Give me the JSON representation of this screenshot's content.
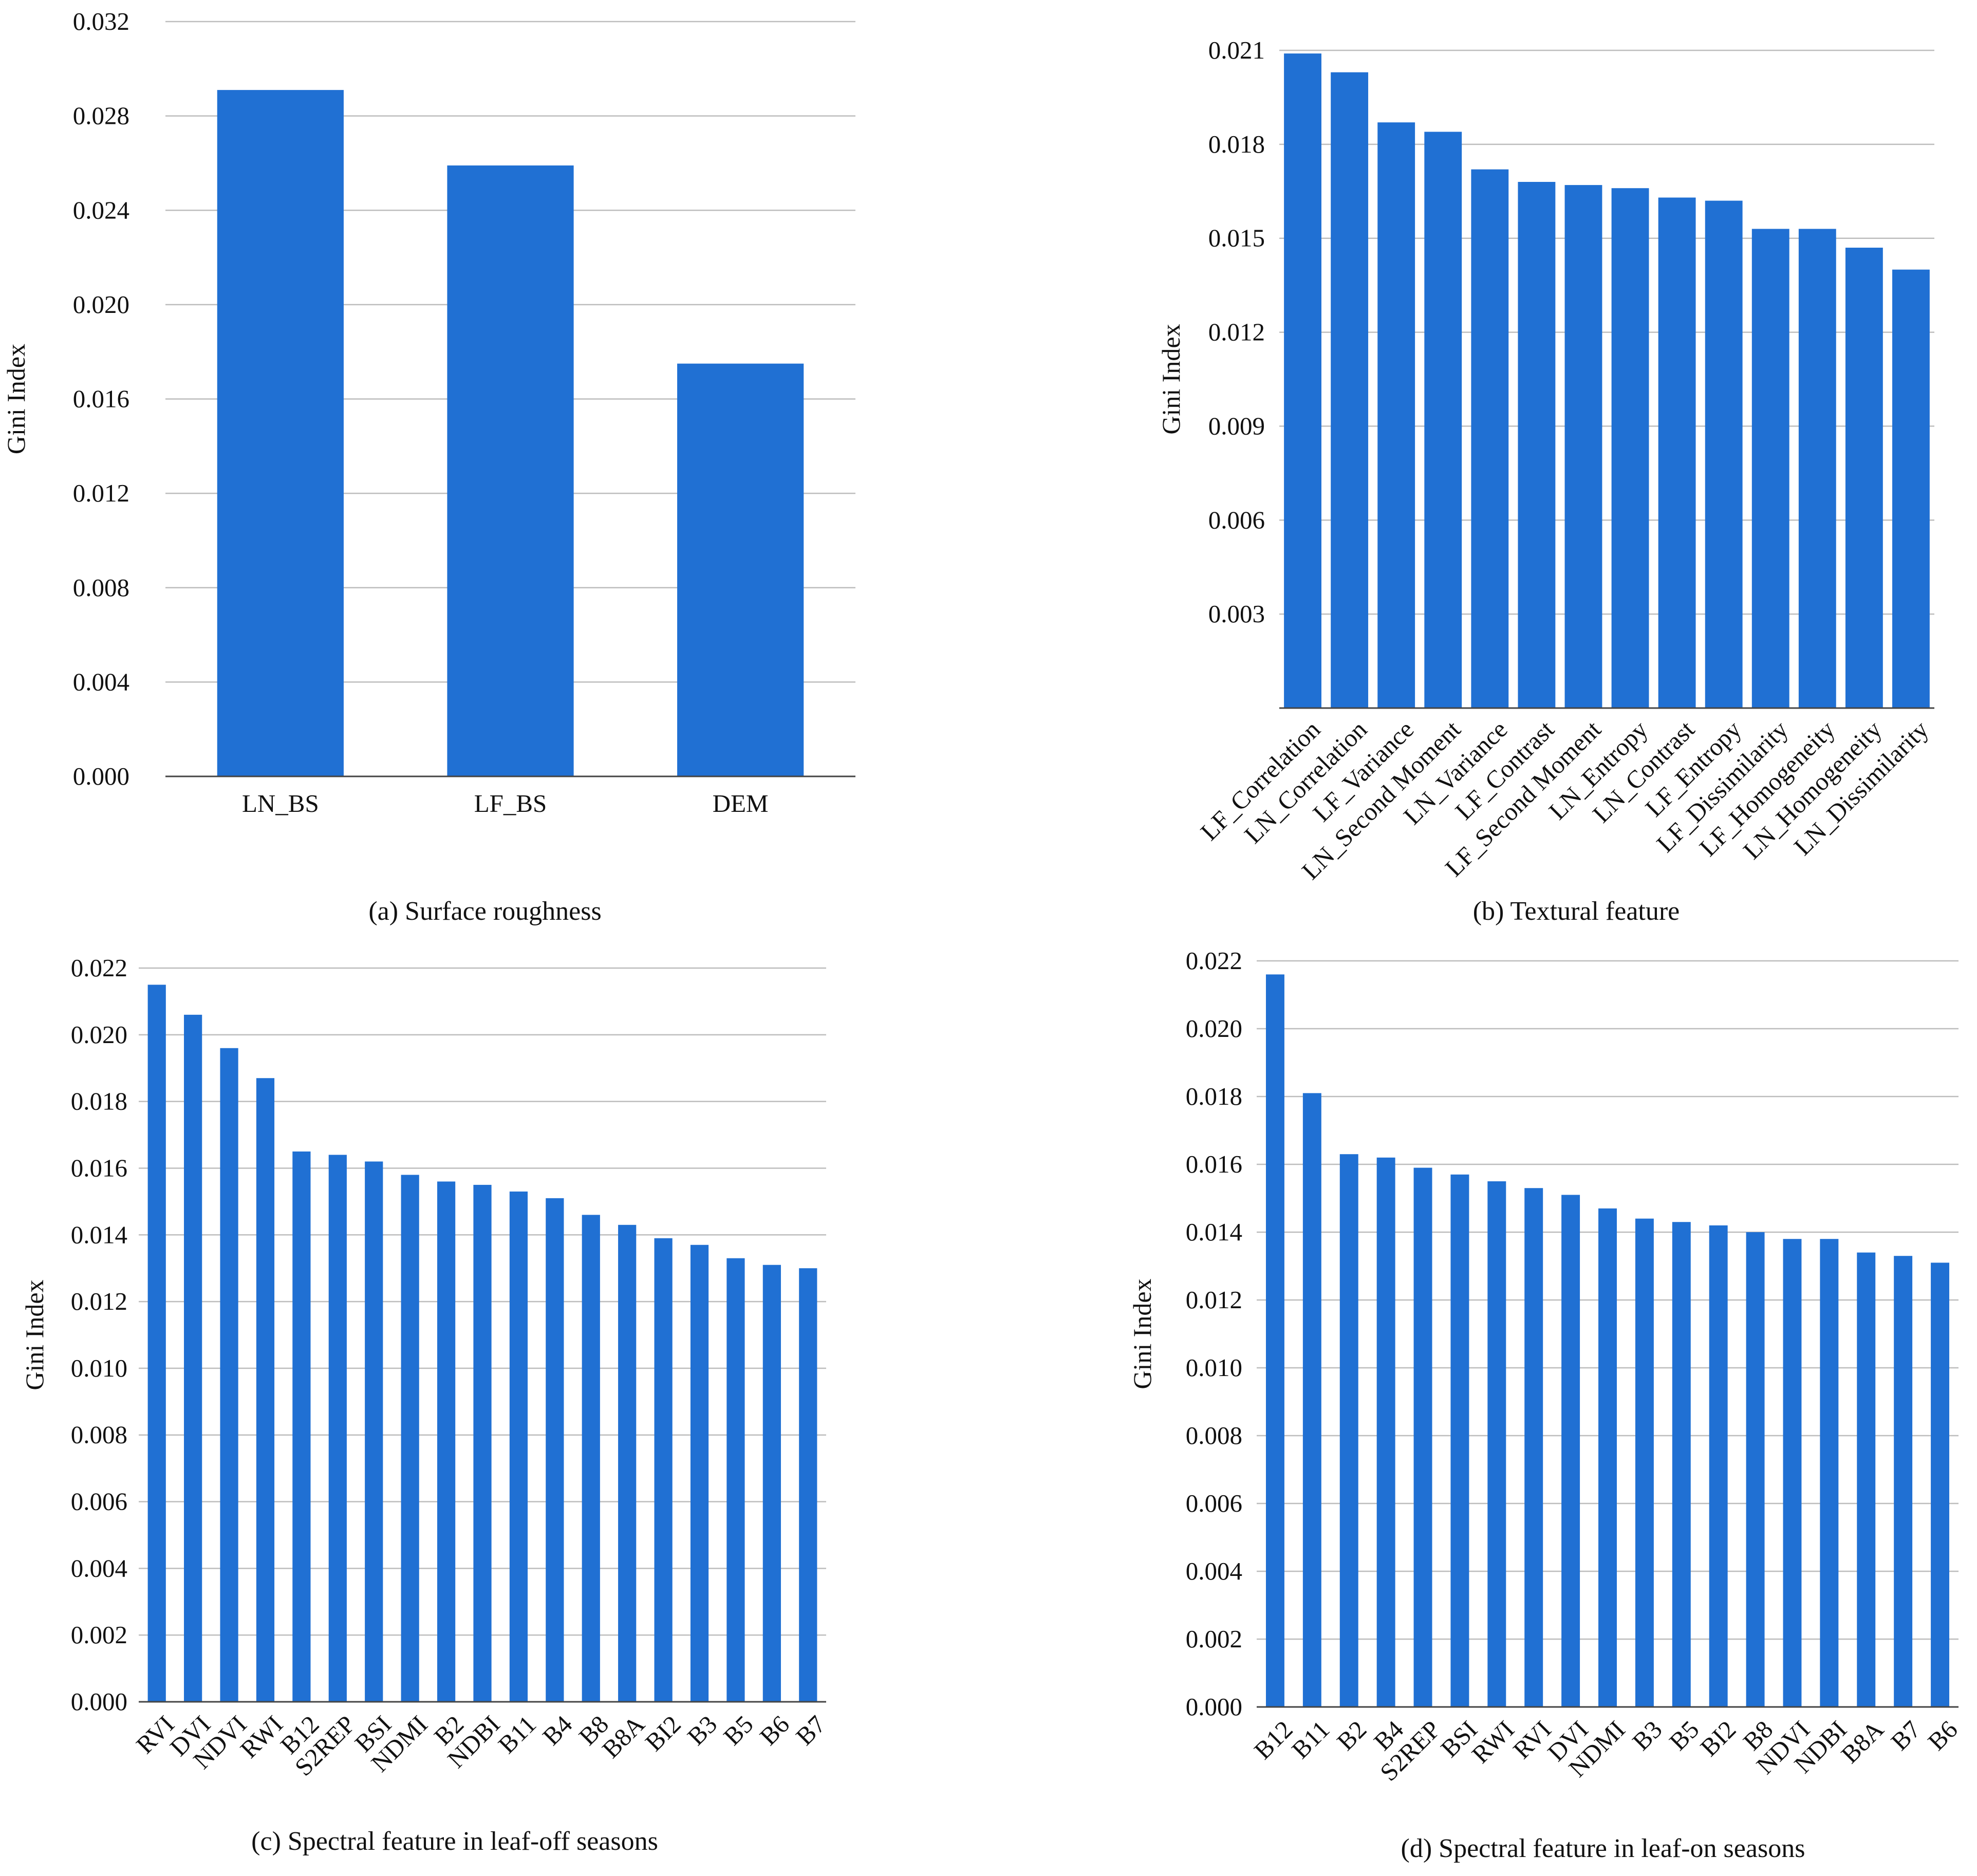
{
  "colors": {
    "bar": "#2070D3",
    "grid": "#BDBDBD",
    "text": "#111111",
    "background": "#FFFFFF"
  },
  "chart_data": [
    {
      "id": "a",
      "type": "bar",
      "caption": "(a) Surface roughness",
      "ylabel": "Gini Index",
      "xlabel": "",
      "categories": [
        "LN_BS",
        "LF_BS",
        "DEM"
      ],
      "values": [
        0.0291,
        0.0259,
        0.0175
      ],
      "ylim": [
        0,
        0.032
      ],
      "yticks": [
        "0.000",
        "0.004",
        "0.008",
        "0.012",
        "0.016",
        "0.020",
        "0.024",
        "0.028",
        "0.032"
      ],
      "grid": true,
      "label_rotation": 0
    },
    {
      "id": "b",
      "type": "bar",
      "caption": "(b) Textural feature",
      "ylabel": "Gini Index",
      "xlabel": "",
      "categories": [
        "LF_Correlation",
        "LN_Correlation",
        "LF_Variance",
        "LN_Second Moment",
        "LN_Variance",
        "LF_Contrast",
        "LF_Second Moment",
        "LN_Entropy",
        "LN_Contrast",
        "LF_Entropy",
        "LF_Dissimilarity",
        "LF_Homogeneity",
        "LN_Homogeneity",
        "LN_Dissimilarity"
      ],
      "values": [
        0.0209,
        0.0203,
        0.0187,
        0.0184,
        0.0172,
        0.0168,
        0.0167,
        0.0166,
        0.0163,
        0.0162,
        0.0153,
        0.0153,
        0.0147,
        0.014
      ],
      "ylim": [
        0,
        0.021
      ],
      "yticks": [
        "",
        "0.003",
        "0.006",
        "0.009",
        "0.012",
        "0.015",
        "0.018",
        "0.021"
      ],
      "grid": true,
      "label_rotation": -45
    },
    {
      "id": "c",
      "type": "bar",
      "caption": "(c) Spectral feature in leaf-off seasons",
      "ylabel": "Gini Index",
      "xlabel": "",
      "categories": [
        "RVI",
        "DVI",
        "NDVI",
        "RWI",
        "B12",
        "S2REP",
        "BSI",
        "NDMI",
        "B2",
        "NDBI",
        "B11",
        "B4",
        "B8",
        "B8A",
        "BI2",
        "B3",
        "B5",
        "B6",
        "B7"
      ],
      "values": [
        0.0215,
        0.0206,
        0.0196,
        0.0187,
        0.0165,
        0.0164,
        0.0162,
        0.0158,
        0.0156,
        0.0155,
        0.0153,
        0.0151,
        0.0146,
        0.0143,
        0.0139,
        0.0137,
        0.0133,
        0.0131,
        0.013
      ],
      "ylim": [
        0,
        0.022
      ],
      "yticks": [
        "0.000",
        "0.002",
        "0.004",
        "0.006",
        "0.008",
        "0.010",
        "0.012",
        "0.014",
        "0.016",
        "0.018",
        "0.020",
        "0.022"
      ],
      "grid": true,
      "label_rotation": -45
    },
    {
      "id": "d",
      "type": "bar",
      "caption": "(d) Spectral feature in leaf-on seasons",
      "ylabel": "Gini Index",
      "xlabel": "",
      "categories": [
        "B12",
        "B11",
        "B2",
        "B4",
        "S2REP",
        "BSI",
        "RWI",
        "RVI",
        "DVI",
        "NDMI",
        "B3",
        "B5",
        "BI2",
        "B8",
        "NDVI",
        "NDBI",
        "B8A",
        "B7",
        "B6"
      ],
      "values": [
        0.0216,
        0.0181,
        0.0163,
        0.0162,
        0.0159,
        0.0157,
        0.0155,
        0.0153,
        0.0151,
        0.0147,
        0.0144,
        0.0143,
        0.0142,
        0.014,
        0.0138,
        0.0138,
        0.0134,
        0.0133,
        0.0131
      ],
      "ylim": [
        0,
        0.022
      ],
      "yticks": [
        "0.000",
        "0.002",
        "0.004",
        "0.006",
        "0.008",
        "0.010",
        "0.012",
        "0.014",
        "0.016",
        "0.018",
        "0.020",
        "0.022"
      ],
      "grid": true,
      "label_rotation": -45
    }
  ]
}
